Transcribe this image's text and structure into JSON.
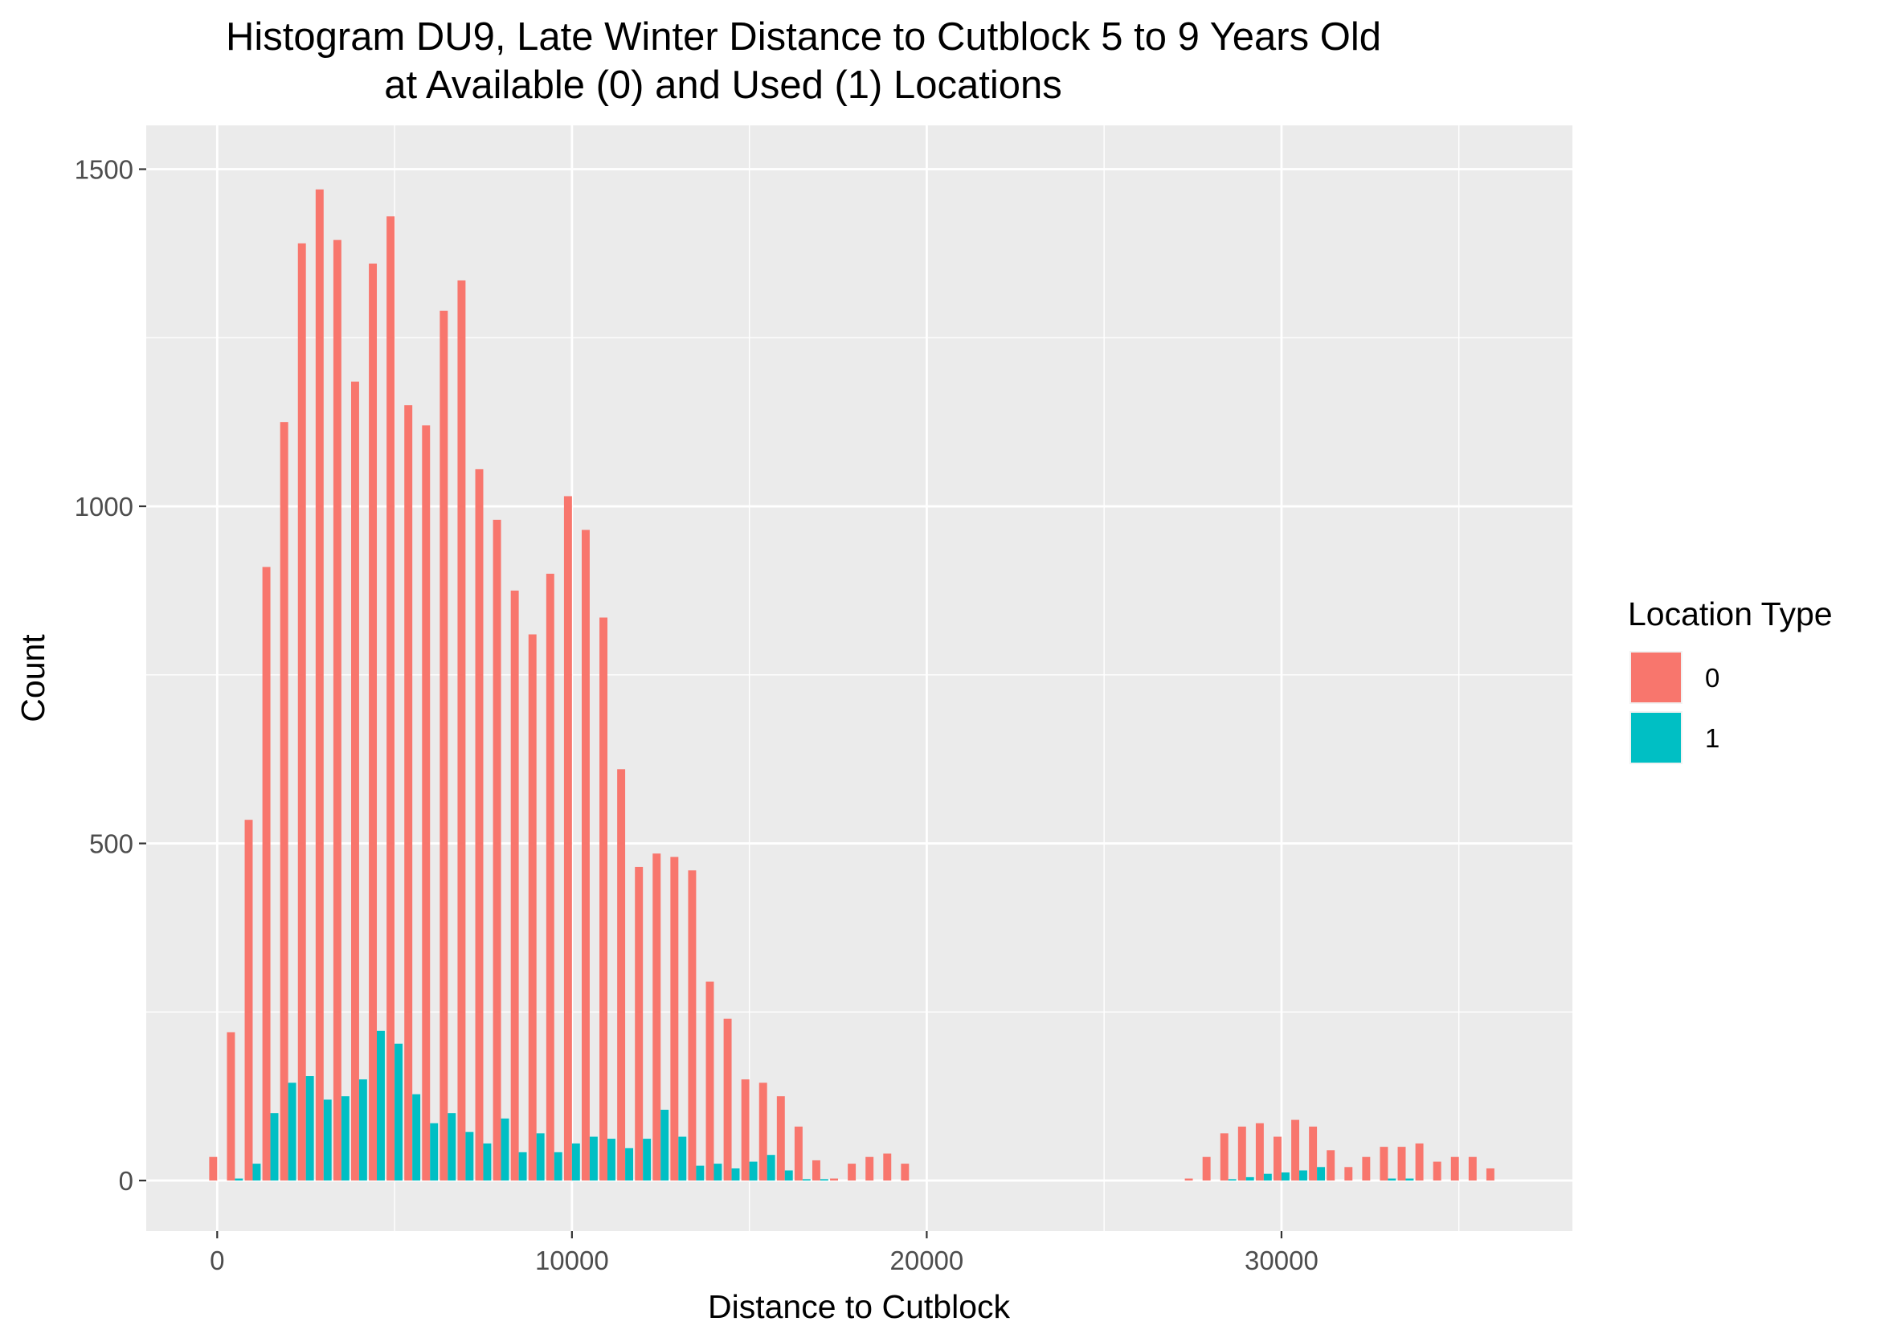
{
  "chart_data": {
    "type": "bar",
    "title": "Histogram DU9, Late Winter Distance to Cutblock 5 to 9 Years Old",
    "subtitle": "at Available (0) and Used (1) Locations",
    "xlabel": "Distance to Cutblock",
    "ylabel": "Count",
    "xlim": [
      -2000,
      38200
    ],
    "ylim": [
      -75,
      1565
    ],
    "xticks": [
      0,
      10000,
      20000,
      30000
    ],
    "xtick_labels": [
      "0",
      "10000",
      "20000",
      "30000"
    ],
    "yticks": [
      0,
      500,
      1000,
      1500
    ],
    "ytick_labels": [
      "0",
      "500",
      "1000",
      "1500"
    ],
    "bin_width": 500,
    "grid": true,
    "legend": {
      "title": "Location Type",
      "placement": "right"
    },
    "series": [
      {
        "name": "0",
        "color": "#F8766D",
        "x": [
          0,
          500,
          1000,
          1500,
          2000,
          2500,
          3000,
          3500,
          4000,
          4500,
          5000,
          5500,
          6000,
          6500,
          7000,
          7500,
          8000,
          8500,
          9000,
          9500,
          10000,
          10500,
          11000,
          11500,
          12000,
          12500,
          13000,
          13500,
          14000,
          14500,
          15000,
          15500,
          16000,
          16500,
          17000,
          17500,
          18000,
          18500,
          19000,
          19500,
          27500,
          28000,
          28500,
          29000,
          29500,
          30000,
          30500,
          31000,
          31500,
          32000,
          32500,
          33000,
          33500,
          34000,
          34500,
          35000,
          35500,
          36000
        ],
        "values": [
          35,
          220,
          535,
          910,
          1125,
          1390,
          1470,
          1395,
          1185,
          1360,
          1430,
          1150,
          1120,
          1290,
          1335,
          1055,
          980,
          875,
          810,
          900,
          1015,
          965,
          835,
          610,
          465,
          485,
          480,
          460,
          295,
          240,
          150,
          145,
          125,
          80,
          30,
          3,
          25,
          35,
          40,
          25,
          3,
          35,
          70,
          80,
          85,
          65,
          90,
          80,
          45,
          20,
          35,
          50,
          50,
          55,
          28,
          35,
          35,
          18
        ]
      },
      {
        "name": "1",
        "color": "#00BFC4",
        "x": [
          500,
          1000,
          1500,
          2000,
          2500,
          3000,
          3500,
          4000,
          4500,
          5000,
          5500,
          6000,
          6500,
          7000,
          7500,
          8000,
          8500,
          9000,
          9500,
          10000,
          10500,
          11000,
          11500,
          12000,
          12500,
          13000,
          13500,
          14000,
          14500,
          15000,
          15500,
          16000,
          16500,
          17000,
          28500,
          29000,
          29500,
          30000,
          30500,
          31000,
          33000,
          33500
        ],
        "values": [
          3,
          25,
          100,
          145,
          155,
          120,
          125,
          150,
          222,
          203,
          128,
          85,
          100,
          72,
          55,
          92,
          42,
          70,
          42,
          55,
          65,
          62,
          48,
          62,
          105,
          65,
          22,
          25,
          18,
          28,
          38,
          15,
          2,
          2,
          2,
          5,
          10,
          12,
          15,
          20,
          3,
          3
        ]
      }
    ]
  }
}
